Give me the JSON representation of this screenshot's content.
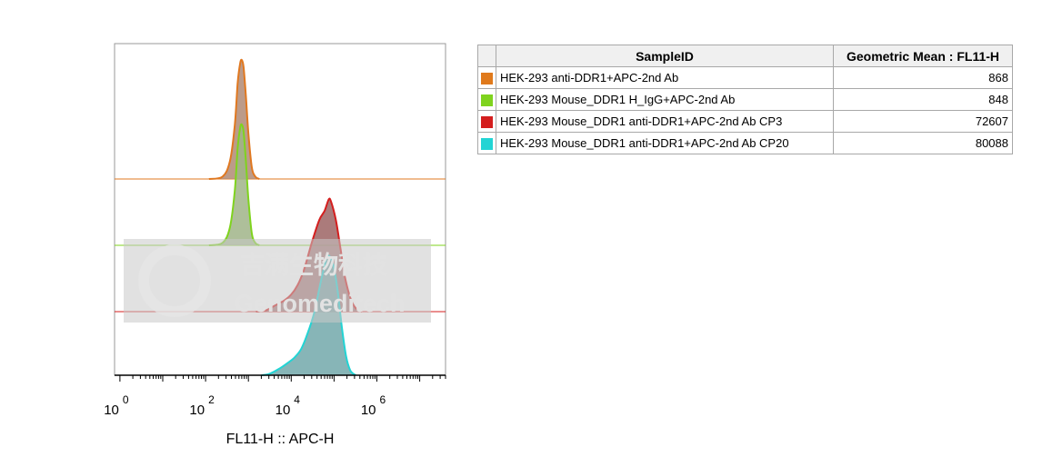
{
  "chart_data": {
    "type": "area",
    "subtype": "staggered-histogram-overlay",
    "xlabel": "FL11-H :: APC-H",
    "x_scale": "log",
    "x_ticks": [
      {
        "base": "10",
        "exp": "0",
        "value": 1
      },
      {
        "base": "10",
        "exp": "2",
        "value": 100
      },
      {
        "base": "10",
        "exp": "4",
        "value": 10000
      },
      {
        "base": "10",
        "exp": "6",
        "value": 1000000
      }
    ],
    "xlim": [
      0.75,
      40000000
    ],
    "series": [
      {
        "name": "HEK-293 anti-DDR1+APC-2nd Ab",
        "stroke": "#e07820",
        "fill": "#b08a74",
        "geometric_mean": "868",
        "profile": [
          [
            120,
            0
          ],
          [
            250,
            0.02
          ],
          [
            370,
            0.15
          ],
          [
            480,
            0.45
          ],
          [
            560,
            0.8
          ],
          [
            640,
            0.97
          ],
          [
            700,
            1.0
          ],
          [
            770,
            0.94
          ],
          [
            870,
            0.7
          ],
          [
            1000,
            0.38
          ],
          [
            1200,
            0.1
          ],
          [
            1450,
            0.02
          ],
          [
            1800,
            0
          ]
        ]
      },
      {
        "name": "HEK-293 Mouse_DDR1 H_IgG+APC-2nd Ab",
        "stroke": "#7fd31e",
        "fill": "#a0b488",
        "geometric_mean": "848",
        "profile": [
          [
            120,
            0
          ],
          [
            250,
            0.02
          ],
          [
            370,
            0.15
          ],
          [
            480,
            0.45
          ],
          [
            560,
            0.8
          ],
          [
            640,
            0.97
          ],
          [
            700,
            1.0
          ],
          [
            770,
            0.94
          ],
          [
            870,
            0.7
          ],
          [
            1000,
            0.38
          ],
          [
            1200,
            0.1
          ],
          [
            1450,
            0.02
          ],
          [
            1800,
            0
          ]
        ]
      },
      {
        "name": "HEK-293 Mouse_DDR1 anti-DDR1+APC-2nd Ab CP3",
        "stroke": "#d41e1e",
        "fill": "#9c6464",
        "geometric_mean": "72607",
        "profile": [
          [
            1500,
            0
          ],
          [
            2500,
            0.01
          ],
          [
            4000,
            0.05
          ],
          [
            7000,
            0.1
          ],
          [
            10000,
            0.15
          ],
          [
            14000,
            0.23
          ],
          [
            20000,
            0.37
          ],
          [
            30000,
            0.6
          ],
          [
            45000,
            0.8
          ],
          [
            60000,
            0.88
          ],
          [
            75000,
            0.98
          ],
          [
            85000,
            0.96
          ],
          [
            110000,
            0.8
          ],
          [
            140000,
            0.56
          ],
          [
            180000,
            0.3
          ],
          [
            240000,
            0.12
          ],
          [
            320000,
            0.03
          ],
          [
            450000,
            0
          ]
        ]
      },
      {
        "name": "HEK-293 Mouse_DDR1 anti-DDR1+APC-2nd Ab CP20",
        "stroke": "#22d4d4",
        "fill": "#72a8aa",
        "geometric_mean": "80088",
        "profile": [
          [
            2000,
            0
          ],
          [
            3000,
            0.01
          ],
          [
            5000,
            0.05
          ],
          [
            8000,
            0.1
          ],
          [
            12000,
            0.15
          ],
          [
            17000,
            0.22
          ],
          [
            24000,
            0.35
          ],
          [
            34000,
            0.52
          ],
          [
            50000,
            0.8
          ],
          [
            70000,
            1.0
          ],
          [
            95000,
            0.93
          ],
          [
            120000,
            0.72
          ],
          [
            150000,
            0.42
          ],
          [
            190000,
            0.16
          ],
          [
            240000,
            0.04
          ],
          [
            320000,
            0
          ]
        ]
      }
    ]
  },
  "table": {
    "header_blank": "",
    "col_sample": "SampleID",
    "col_mean": "Geometric Mean : FL11-H",
    "rows": [
      {
        "color": "#e07a1c",
        "name": "HEK-293 anti-DDR1+APC-2nd Ab",
        "mean": "868"
      },
      {
        "color": "#7fd31e",
        "name": "HEK-293 Mouse_DDR1 H_IgG+APC-2nd Ab",
        "mean": "848"
      },
      {
        "color": "#d41e1e",
        "name": "HEK-293 Mouse_DDR1 anti-DDR1+APC-2nd Ab CP3",
        "mean": "72607"
      },
      {
        "color": "#22d4d4",
        "name": "HEK-293 Mouse_DDR1 anti-DDR1+APC-2nd Ab CP20",
        "mean": "80088"
      }
    ]
  },
  "watermark": {
    "chinese": "吉满生物科技",
    "english": "Genomeditech"
  }
}
